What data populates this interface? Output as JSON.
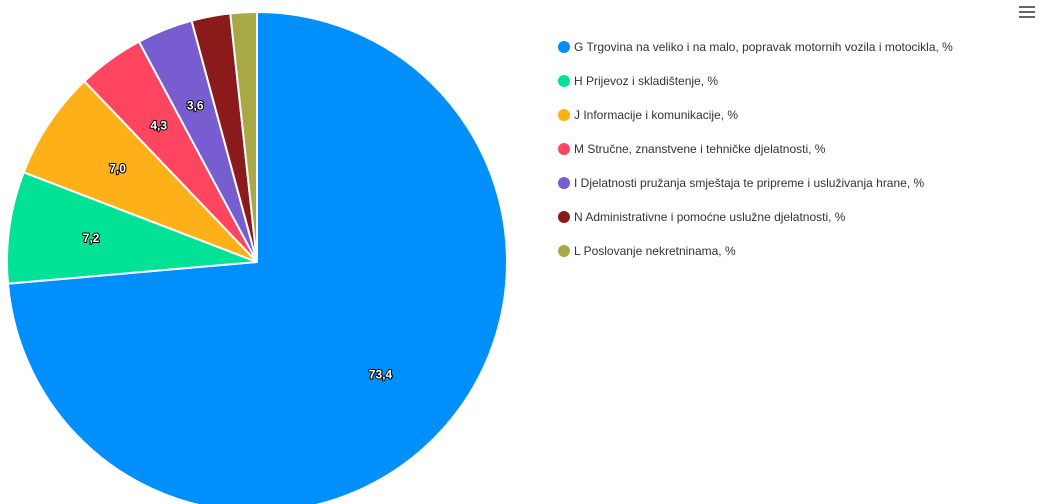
{
  "chart_data": {
    "type": "pie",
    "title": "",
    "slices": [
      {
        "name": "G Trgovina na veliko i na malo, popravak motornih vozila i motocikla, %",
        "value": 73.4,
        "label": "73,4",
        "color": "#008FFB"
      },
      {
        "name": "H Prijevoz i skladištenje, %",
        "value": 7.2,
        "label": "7,2",
        "color": "#00E396"
      },
      {
        "name": "J Informacije i komunikacije, %",
        "value": 7.0,
        "label": "7,0",
        "color": "#FEB019"
      },
      {
        "name": "M Stručne, znanstvene i tehničke djelatnosti, %",
        "value": 4.3,
        "label": "4,3",
        "color": "#FF4560"
      },
      {
        "name": "I Djelatnosti pružanja smještaja te pripreme i usluživanja hrane, %",
        "value": 3.6,
        "label": "3,6",
        "color": "#775DD0"
      },
      {
        "name": "N Administrativne i pomoćne uslužne djelatnosti, %",
        "value": 2.5,
        "label": "",
        "color": "#8B1A1A"
      },
      {
        "name": "L Poslovanje nekretninama, %",
        "value": 1.7,
        "label": "",
        "color": "#A8A845"
      }
    ],
    "legend_position": "right"
  },
  "toolbar": {
    "menu_icon": "hamburger-menu-icon"
  }
}
